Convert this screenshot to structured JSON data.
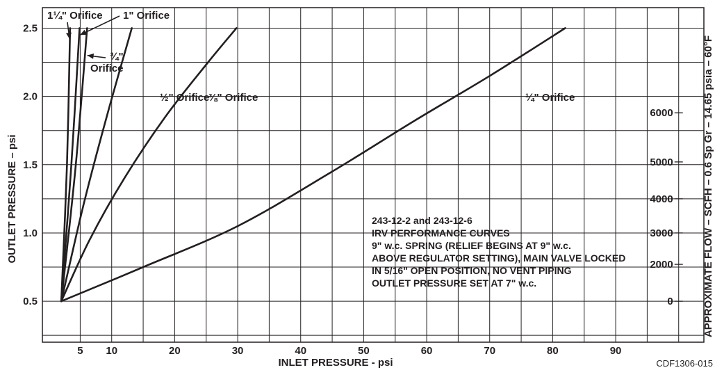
{
  "chart_data": {
    "type": "line",
    "title": "",
    "note_lines": [
      "243-12-2 and 243-12-6",
      "IRV PERFORMANCE CURVES",
      "9\" w.c. SPRING (RELIEF BEGINS AT 9\" w.c.",
      "ABOVE REGULATOR SETTING), MAIN VALVE LOCKED",
      "IN 5/16\" OPEN POSITION, NO VENT PIPING",
      "OUTLET PRESSURE SET AT 7\" w.c."
    ],
    "xlabel": "INLET PRESSURE - psi",
    "ylabel": "OUTLET PRESSURE – psi",
    "y2label": "APPROXIMATE FLOW – SCFH – 0.6 Sp Gr – 14.65 psia – 60°F",
    "xlim": [
      -1,
      104
    ],
    "ylim": [
      0.2,
      2.65
    ],
    "x_ticks": [
      "5",
      "10",
      "20",
      "30",
      "40",
      "50",
      "60",
      "70",
      "80",
      "90"
    ],
    "x_tick_values": [
      5,
      10,
      20,
      30,
      40,
      50,
      60,
      70,
      80,
      90
    ],
    "y_ticks": [
      "0.5",
      "1.0",
      "1.5",
      "2.0",
      "2.5"
    ],
    "y_tick_values": [
      0.5,
      1.0,
      1.5,
      2.0,
      2.5
    ],
    "flow_ticks": [
      "0",
      "2000",
      "3000",
      "4000",
      "5000",
      "6000"
    ],
    "flow_tick_y_values": [
      0.5,
      0.77,
      1.0,
      1.25,
      1.52,
      1.88
    ],
    "grid": true,
    "series": [
      {
        "name": "1¼\" Orifice",
        "x": [
          2,
          2.9,
          3.4
        ],
        "y": [
          0.5,
          1.5,
          2.5
        ]
      },
      {
        "name": "1\" Orifice",
        "x": [
          2,
          3.6,
          4.9
        ],
        "y": [
          0.5,
          1.5,
          2.5
        ]
      },
      {
        "name": "¾\" Orifice",
        "x": [
          2,
          4.3,
          6.1
        ],
        "y": [
          0.5,
          1.5,
          2.5
        ]
      },
      {
        "name": "½\" Orifice",
        "x": [
          2,
          5.5,
          9.2,
          13.2
        ],
        "y": [
          0.5,
          1.2,
          1.85,
          2.5
        ]
      },
      {
        "name": "⅜\" Orifice",
        "x": [
          2,
          6.5,
          12,
          18.5,
          25.3,
          29.8
        ],
        "y": [
          0.5,
          0.95,
          1.4,
          1.85,
          2.25,
          2.5
        ]
      },
      {
        "name": "¼\" Orifice",
        "x": [
          2,
          15,
          30,
          45,
          58,
          70,
          82
        ],
        "y": [
          0.5,
          0.75,
          1.05,
          1.45,
          1.82,
          2.15,
          2.5
        ]
      }
    ]
  },
  "figure_code": "CDF1306-015"
}
